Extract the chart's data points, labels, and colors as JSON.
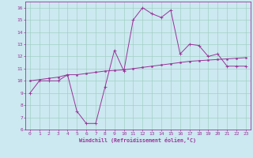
{
  "xlabel": "Windchill (Refroidissement éolien,°C)",
  "bg_color": "#cce8f0",
  "grid_color": "#99ccbb",
  "line_color": "#993399",
  "spine_color": "#993399",
  "xlim": [
    -0.5,
    23.5
  ],
  "ylim": [
    6,
    16.5
  ],
  "xticks": [
    0,
    1,
    2,
    3,
    4,
    5,
    6,
    7,
    8,
    9,
    10,
    11,
    12,
    13,
    14,
    15,
    16,
    17,
    18,
    19,
    20,
    21,
    22,
    23
  ],
  "yticks": [
    6,
    7,
    8,
    9,
    10,
    11,
    12,
    13,
    14,
    15,
    16
  ],
  "curve1_x": [
    0,
    1,
    2,
    3,
    4,
    5,
    6,
    7,
    8,
    9,
    10,
    11,
    12,
    13,
    14,
    15,
    16,
    17,
    18,
    19,
    20,
    21,
    22,
    23
  ],
  "curve1_y": [
    9.0,
    10.0,
    10.0,
    10.0,
    10.5,
    7.5,
    6.5,
    6.5,
    9.5,
    12.5,
    10.8,
    15.0,
    16.0,
    15.5,
    15.2,
    15.8,
    12.2,
    13.0,
    12.9,
    12.0,
    12.2,
    11.2,
    11.2,
    11.2
  ],
  "curve2_x": [
    0,
    1,
    2,
    3,
    4,
    5,
    6,
    7,
    8,
    9,
    10,
    11,
    12,
    13,
    14,
    15,
    16,
    17,
    18,
    19,
    20,
    21,
    22,
    23
  ],
  "curve2_y": [
    10.0,
    10.1,
    10.2,
    10.3,
    10.5,
    10.5,
    10.6,
    10.7,
    10.8,
    10.85,
    10.9,
    11.0,
    11.1,
    11.2,
    11.3,
    11.4,
    11.5,
    11.6,
    11.65,
    11.7,
    11.75,
    11.8,
    11.85,
    11.9
  ]
}
